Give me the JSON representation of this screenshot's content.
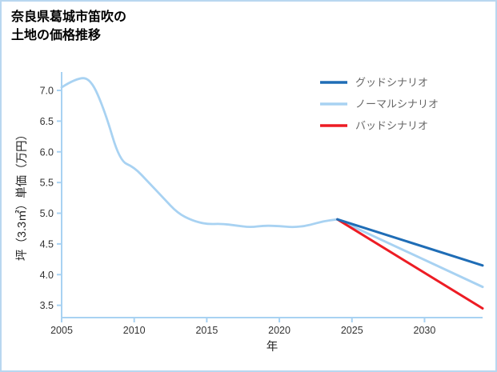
{
  "title": {
    "line1": "奈良県葛城市笛吹の",
    "line2": "土地の価格推移"
  },
  "chart_data": {
    "type": "line",
    "title": "奈良県葛城市笛吹の土地の価格推移",
    "xlabel": "年",
    "ylabel": "坪（3.3㎡）単価（万円）",
    "xlim": [
      2005,
      2034
    ],
    "ylim": [
      3.3,
      7.3
    ],
    "grid": false,
    "legend_position": "top-right",
    "x_ticks": [
      2005,
      2010,
      2015,
      2020,
      2025,
      2030
    ],
    "x_tick_labels": [
      "2005",
      "2010",
      "2015",
      "2020",
      "2025",
      "2030"
    ],
    "y_ticks": [
      3.5,
      4.0,
      4.5,
      5.0,
      5.5,
      6.0,
      6.5,
      7.0
    ],
    "y_tick_labels": [
      "3.5",
      "4.0",
      "4.5",
      "5.0",
      "5.5",
      "6.0",
      "6.5",
      "7.0"
    ],
    "colors": {
      "good": "#1f6db6",
      "normal": "#a8d2f2",
      "bad": "#ed1c24",
      "axis": "#a8d2f2",
      "tick_label": "#333333",
      "axis_label": "#222222",
      "legend_text": "#666666"
    },
    "series": [
      {
        "key": "history",
        "color_key": "normal",
        "width": 2.8,
        "smooth": true,
        "x": [
          2005,
          2006,
          2007,
          2008,
          2009,
          2010,
          2011,
          2012,
          2013,
          2014,
          2015,
          2016,
          2017,
          2018,
          2019,
          2020,
          2021,
          2022,
          2023,
          2024
        ],
        "values": [
          7.05,
          7.2,
          7.2,
          6.65,
          5.85,
          5.75,
          5.5,
          5.25,
          5.0,
          4.88,
          4.82,
          4.83,
          4.8,
          4.77,
          4.8,
          4.79,
          4.77,
          4.8,
          4.87,
          4.9
        ]
      },
      {
        "key": "normal-scenario",
        "name": "ノーマルシナリオ",
        "color_key": "normal",
        "width": 3,
        "smooth": false,
        "x": [
          2024,
          2034
        ],
        "values": [
          4.9,
          3.8
        ]
      },
      {
        "key": "bad-scenario",
        "name": "バッドシナリオ",
        "color_key": "bad",
        "width": 3,
        "smooth": false,
        "x": [
          2024,
          2034
        ],
        "values": [
          4.9,
          3.45
        ]
      },
      {
        "key": "good-scenario",
        "name": "グッドシナリオ",
        "color_key": "good",
        "width": 3,
        "smooth": false,
        "x": [
          2024,
          2034
        ],
        "values": [
          4.9,
          4.15
        ]
      }
    ],
    "legend": [
      {
        "label": "グッドシナリオ",
        "color_key": "good"
      },
      {
        "label": "ノーマルシナリオ",
        "color_key": "normal"
      },
      {
        "label": "バッドシナリオ",
        "color_key": "bad"
      }
    ]
  }
}
